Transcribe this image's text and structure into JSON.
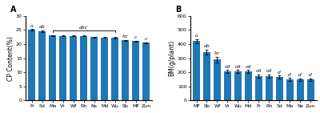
{
  "chart_data": [
    {
      "type": "bar",
      "panel_label": "A",
      "categories": [
        "Fr",
        "Sd",
        "Ma",
        "Vr",
        "Wf",
        "Rh",
        "Ns",
        "Md",
        "Wu",
        "Sb",
        "MF",
        "Zun"
      ],
      "values": [
        25.0,
        24.6,
        23.0,
        22.9,
        22.9,
        22.9,
        22.5,
        22.4,
        22.3,
        21.3,
        21.0,
        20.5
      ],
      "errors": [
        0.28,
        0.32,
        0.18,
        0.18,
        0.18,
        0.18,
        0.18,
        0.18,
        0.22,
        0.22,
        0.18,
        0.18
      ],
      "annotations": [
        "a",
        "ab",
        null,
        null,
        null,
        null,
        null,
        null,
        null,
        "bc",
        "c",
        "c"
      ],
      "bracket": {
        "from": "Ma",
        "to": "Wu",
        "label": "abc"
      },
      "ylabel": "CP Content(%)",
      "ylim": [
        0,
        30
      ],
      "yticks": [
        0,
        5,
        10,
        15,
        20,
        25,
        30
      ]
    },
    {
      "type": "bar",
      "panel_label": "B",
      "categories": [
        "MF",
        "Sb",
        "Wf",
        "Vr",
        "Wu",
        "Md",
        "Fr",
        "Rh",
        "Sd",
        "Ma",
        "Ns",
        "Zun"
      ],
      "values": [
        420,
        345,
        290,
        205,
        205,
        205,
        175,
        175,
        165,
        150,
        148,
        148
      ],
      "errors": [
        14,
        17,
        19,
        11,
        11,
        11,
        11,
        11,
        11,
        9,
        9,
        9
      ],
      "annotations": [
        "a",
        "ab",
        "bc",
        "cd",
        "cd",
        "cd",
        "cd",
        "cd",
        "d",
        "d",
        "d",
        "d"
      ],
      "ylabel": "BM(g/plant)",
      "ylim": [
        0,
        600
      ],
      "yticks": [
        0,
        100,
        200,
        300,
        400,
        500,
        600
      ]
    }
  ]
}
